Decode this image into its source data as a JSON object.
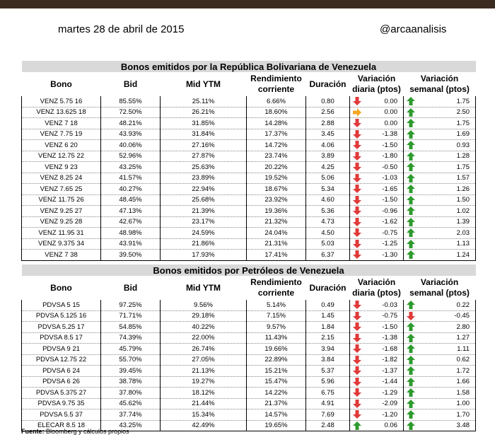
{
  "header": {
    "date": "martes 28 de abril de 2015",
    "handle": "@arcaanalisis"
  },
  "columns": {
    "bono": "Bono",
    "bid": "Bid",
    "mid_ytm": "Mid YTM",
    "rendimiento": "Rendimiento corriente",
    "duracion": "Duración",
    "var_diaria": "Variación diaria (ptos)",
    "var_semanal": "Variación semanal (ptos)"
  },
  "colors": {
    "up": "#2e9a2e",
    "down": "#e03a3a",
    "flat": "#f5a623",
    "title_bg": "#d9d9d9"
  },
  "tables": [
    {
      "title": "Bonos emitidos por la República Bolivariana de Venezuela",
      "rows": [
        {
          "bono": "VENZ 5.75 16",
          "bid": "85.55%",
          "ytm": "25.11%",
          "rend": "6.66%",
          "dur": "0.80",
          "d_dir": "down",
          "d": "0.00",
          "w_dir": "up",
          "w": "1.75"
        },
        {
          "bono": "VENZ 13.625 18",
          "bid": "72.50%",
          "ytm": "26.21%",
          "rend": "18.60%",
          "dur": "2.56",
          "d_dir": "flat",
          "d": "0.00",
          "w_dir": "up",
          "w": "2.50"
        },
        {
          "bono": "VENZ 7 18",
          "bid": "48.21%",
          "ytm": "31.85%",
          "rend": "14.28%",
          "dur": "2.88",
          "d_dir": "down",
          "d": "0.00",
          "w_dir": "up",
          "w": "1.75"
        },
        {
          "bono": "VENZ 7.75 19",
          "bid": "43.93%",
          "ytm": "31.84%",
          "rend": "17.37%",
          "dur": "3.45",
          "d_dir": "down",
          "d": "-1.38",
          "w_dir": "up",
          "w": "1.69"
        },
        {
          "bono": "VENZ 6 20",
          "bid": "40.06%",
          "ytm": "27.16%",
          "rend": "14.72%",
          "dur": "4.06",
          "d_dir": "down",
          "d": "-1.50",
          "w_dir": "up",
          "w": "0.93"
        },
        {
          "bono": "VENZ 12.75 22",
          "bid": "52.96%",
          "ytm": "27.87%",
          "rend": "23.74%",
          "dur": "3.89",
          "d_dir": "down",
          "d": "-1.80",
          "w_dir": "up",
          "w": "1.28"
        },
        {
          "bono": "VENZ 9 23",
          "bid": "43.25%",
          "ytm": "25.63%",
          "rend": "20.22%",
          "dur": "4.25",
          "d_dir": "down",
          "d": "-0.50",
          "w_dir": "up",
          "w": "1.75"
        },
        {
          "bono": "VENZ 8.25 24",
          "bid": "41.57%",
          "ytm": "23.89%",
          "rend": "19.52%",
          "dur": "5.06",
          "d_dir": "down",
          "d": "-1.03",
          "w_dir": "up",
          "w": "1.57"
        },
        {
          "bono": "VENZ 7.65 25",
          "bid": "40.27%",
          "ytm": "22.94%",
          "rend": "18.67%",
          "dur": "5.34",
          "d_dir": "down",
          "d": "-1.65",
          "w_dir": "up",
          "w": "1.26"
        },
        {
          "bono": "VENZ 11.75 26",
          "bid": "48.45%",
          "ytm": "25.68%",
          "rend": "23.92%",
          "dur": "4.60",
          "d_dir": "down",
          "d": "-1.50",
          "w_dir": "up",
          "w": "1.50"
        },
        {
          "bono": "VENZ 9.25 27",
          "bid": "47.13%",
          "ytm": "21.39%",
          "rend": "19.36%",
          "dur": "5.36",
          "d_dir": "down",
          "d": "-0.96",
          "w_dir": "up",
          "w": "1.02"
        },
        {
          "bono": "VENZ 9.25 28",
          "bid": "42.67%",
          "ytm": "23.17%",
          "rend": "21.32%",
          "dur": "4.73",
          "d_dir": "down",
          "d": "-1.62",
          "w_dir": "up",
          "w": "1.39"
        },
        {
          "bono": "VENZ 11.95 31",
          "bid": "48.98%",
          "ytm": "24.59%",
          "rend": "24.04%",
          "dur": "4.50",
          "d_dir": "down",
          "d": "-0.75",
          "w_dir": "up",
          "w": "2.03"
        },
        {
          "bono": "VENZ 9.375 34",
          "bid": "43.91%",
          "ytm": "21.86%",
          "rend": "21.31%",
          "dur": "5.03",
          "d_dir": "down",
          "d": "-1.25",
          "w_dir": "up",
          "w": "1.13"
        },
        {
          "bono": "VENZ 7 38",
          "bid": "39.50%",
          "ytm": "17.93%",
          "rend": "17.41%",
          "dur": "6.37",
          "d_dir": "down",
          "d": "-1.30",
          "w_dir": "up",
          "w": "1.24"
        }
      ]
    },
    {
      "title": "Bonos emitidos por Petróleos de Venezuela",
      "rows": [
        {
          "bono": "PDVSA 5 15",
          "bid": "97.25%",
          "ytm": "9.56%",
          "rend": "5.14%",
          "dur": "0.49",
          "d_dir": "down",
          "d": "-0.03",
          "w_dir": "up",
          "w": "0.22"
        },
        {
          "bono": "PDVSA 5.125 16",
          "bid": "71.71%",
          "ytm": "29.18%",
          "rend": "7.15%",
          "dur": "1.45",
          "d_dir": "down",
          "d": "-0.75",
          "w_dir": "down",
          "w": "-0.45"
        },
        {
          "bono": "PDVSA 5.25 17",
          "bid": "54.85%",
          "ytm": "40.22%",
          "rend": "9.57%",
          "dur": "1.84",
          "d_dir": "down",
          "d": "-1.50",
          "w_dir": "up",
          "w": "2.80"
        },
        {
          "bono": "PDVSA 8.5 17",
          "bid": "74.39%",
          "ytm": "22.00%",
          "rend": "11.43%",
          "dur": "2.15",
          "d_dir": "down",
          "d": "-1.38",
          "w_dir": "up",
          "w": "1.27"
        },
        {
          "bono": "PDVSA 9 21",
          "bid": "45.79%",
          "ytm": "26.74%",
          "rend": "19.66%",
          "dur": "3.94",
          "d_dir": "down",
          "d": "-1.68",
          "w_dir": "up",
          "w": "1.11"
        },
        {
          "bono": "PDVSA 12.75 22",
          "bid": "55.70%",
          "ytm": "27.05%",
          "rend": "22.89%",
          "dur": "3.84",
          "d_dir": "down",
          "d": "-1.82",
          "w_dir": "up",
          "w": "0.62"
        },
        {
          "bono": "PDVSA 6 24",
          "bid": "39.45%",
          "ytm": "21.13%",
          "rend": "15.21%",
          "dur": "5.37",
          "d_dir": "down",
          "d": "-1.37",
          "w_dir": "up",
          "w": "1.72"
        },
        {
          "bono": "PDVSA 6 26",
          "bid": "38.78%",
          "ytm": "19.27%",
          "rend": "15.47%",
          "dur": "5.96",
          "d_dir": "down",
          "d": "-1.44",
          "w_dir": "up",
          "w": "1.66"
        },
        {
          "bono": "PDVSA 5.375 27",
          "bid": "37.80%",
          "ytm": "18.12%",
          "rend": "14.22%",
          "dur": "6.75",
          "d_dir": "down",
          "d": "-1.29",
          "w_dir": "up",
          "w": "1.58"
        },
        {
          "bono": "PDVSA 9.75 35",
          "bid": "45.62%",
          "ytm": "21.44%",
          "rend": "21.37%",
          "dur": "4.91",
          "d_dir": "down",
          "d": "-2.09",
          "w_dir": "up",
          "w": "1.00"
        },
        {
          "bono": "PDVSA 5.5 37",
          "bid": "37.74%",
          "ytm": "15.34%",
          "rend": "14.57%",
          "dur": "7.69",
          "d_dir": "down",
          "d": "-1.20",
          "w_dir": "up",
          "w": "1.70"
        },
        {
          "bono": "ELECAR 8.5 18",
          "bid": "43.25%",
          "ytm": "42.49%",
          "rend": "19.65%",
          "dur": "2.48",
          "d_dir": "up",
          "d": "0.06",
          "w_dir": "up",
          "w": "3.48"
        }
      ]
    }
  ],
  "footnote": {
    "label": "Fuente:",
    "text": "Bloomberg y cálculos propios"
  }
}
